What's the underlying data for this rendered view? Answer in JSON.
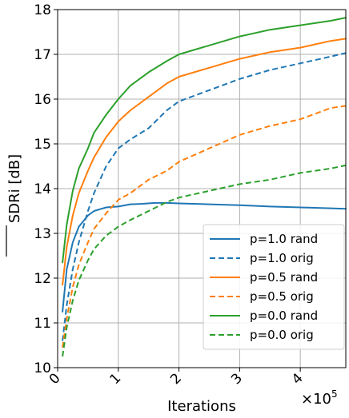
{
  "chart_data": {
    "type": "line",
    "xlabel": "Iterations",
    "ylabel": "SDRi [dB]",
    "x_multiplier_label": "×10",
    "x_multiplier_exp": "5",
    "xlim": [
      0,
      4.75
    ],
    "ylim": [
      10,
      18
    ],
    "xticks": [
      0,
      1,
      2,
      3,
      4
    ],
    "xtick_labels": [
      "0",
      "1",
      "2",
      "3",
      "4"
    ],
    "yticks": [
      10,
      11,
      12,
      13,
      14,
      15,
      16,
      17,
      18
    ],
    "ytick_labels": [
      "10",
      "11",
      "12",
      "13",
      "14",
      "15",
      "16",
      "17",
      "18"
    ],
    "grid": true,
    "legend_position": "lower-right",
    "series": [
      {
        "name": "p=1.0 rand",
        "color": "#1f77b4",
        "style": "solid",
        "x": [
          0.08,
          0.15,
          0.25,
          0.35,
          0.5,
          0.6,
          0.8,
          1.0,
          1.2,
          1.4,
          1.6,
          1.8,
          2.0,
          2.5,
          3.0,
          3.5,
          4.0,
          4.5,
          4.75
        ],
        "y": [
          11.25,
          12.2,
          12.8,
          13.15,
          13.4,
          13.5,
          13.58,
          13.6,
          13.65,
          13.66,
          13.68,
          13.68,
          13.67,
          13.65,
          13.63,
          13.6,
          13.58,
          13.56,
          13.55
        ]
      },
      {
        "name": "p=1.0 orig",
        "color": "#1f77b4",
        "style": "dashed",
        "x": [
          0.08,
          0.15,
          0.25,
          0.35,
          0.5,
          0.6,
          0.8,
          1.0,
          1.2,
          1.5,
          1.8,
          2.0,
          2.5,
          3.0,
          3.5,
          4.0,
          4.5,
          4.75
        ],
        "y": [
          10.6,
          11.4,
          12.2,
          12.8,
          13.5,
          13.9,
          14.5,
          14.9,
          15.1,
          15.35,
          15.75,
          15.95,
          16.2,
          16.45,
          16.65,
          16.8,
          16.95,
          17.03
        ]
      },
      {
        "name": "p=0.5 rand",
        "color": "#ff7f0e",
        "style": "solid",
        "x": [
          0.08,
          0.15,
          0.25,
          0.35,
          0.5,
          0.6,
          0.8,
          1.0,
          1.2,
          1.5,
          1.8,
          2.0,
          2.5,
          3.0,
          3.5,
          4.0,
          4.5,
          4.75
        ],
        "y": [
          11.85,
          12.7,
          13.4,
          13.9,
          14.4,
          14.7,
          15.15,
          15.5,
          15.75,
          16.05,
          16.35,
          16.5,
          16.7,
          16.9,
          17.05,
          17.15,
          17.3,
          17.35
        ]
      },
      {
        "name": "p=0.5 orig",
        "color": "#ff7f0e",
        "style": "dashed",
        "x": [
          0.08,
          0.15,
          0.25,
          0.35,
          0.5,
          0.6,
          0.8,
          1.0,
          1.2,
          1.5,
          1.8,
          2.0,
          2.5,
          3.0,
          3.5,
          4.0,
          4.5,
          4.75
        ],
        "y": [
          10.45,
          11.1,
          11.8,
          12.3,
          12.8,
          13.1,
          13.45,
          13.75,
          13.9,
          14.2,
          14.4,
          14.6,
          14.9,
          15.2,
          15.4,
          15.55,
          15.8,
          15.85
        ]
      },
      {
        "name": "p=0.0 rand",
        "color": "#2ca02c",
        "style": "solid",
        "x": [
          0.08,
          0.15,
          0.25,
          0.35,
          0.5,
          0.6,
          0.8,
          1.0,
          1.2,
          1.5,
          1.8,
          2.0,
          2.5,
          3.0,
          3.5,
          4.0,
          4.5,
          4.75
        ],
        "y": [
          12.35,
          13.2,
          13.95,
          14.45,
          14.9,
          15.25,
          15.65,
          16.0,
          16.3,
          16.6,
          16.85,
          17.0,
          17.2,
          17.4,
          17.55,
          17.65,
          17.75,
          17.82
        ]
      },
      {
        "name": "p=0.0 orig",
        "color": "#2ca02c",
        "style": "dashed",
        "x": [
          0.08,
          0.15,
          0.25,
          0.35,
          0.5,
          0.6,
          0.8,
          1.0,
          1.2,
          1.5,
          1.8,
          2.0,
          2.5,
          3.0,
          3.5,
          4.0,
          4.5,
          4.75
        ],
        "y": [
          10.25,
          10.9,
          11.5,
          11.95,
          12.4,
          12.65,
          12.95,
          13.15,
          13.3,
          13.5,
          13.7,
          13.8,
          13.95,
          14.1,
          14.2,
          14.35,
          14.45,
          14.52
        ]
      }
    ]
  }
}
